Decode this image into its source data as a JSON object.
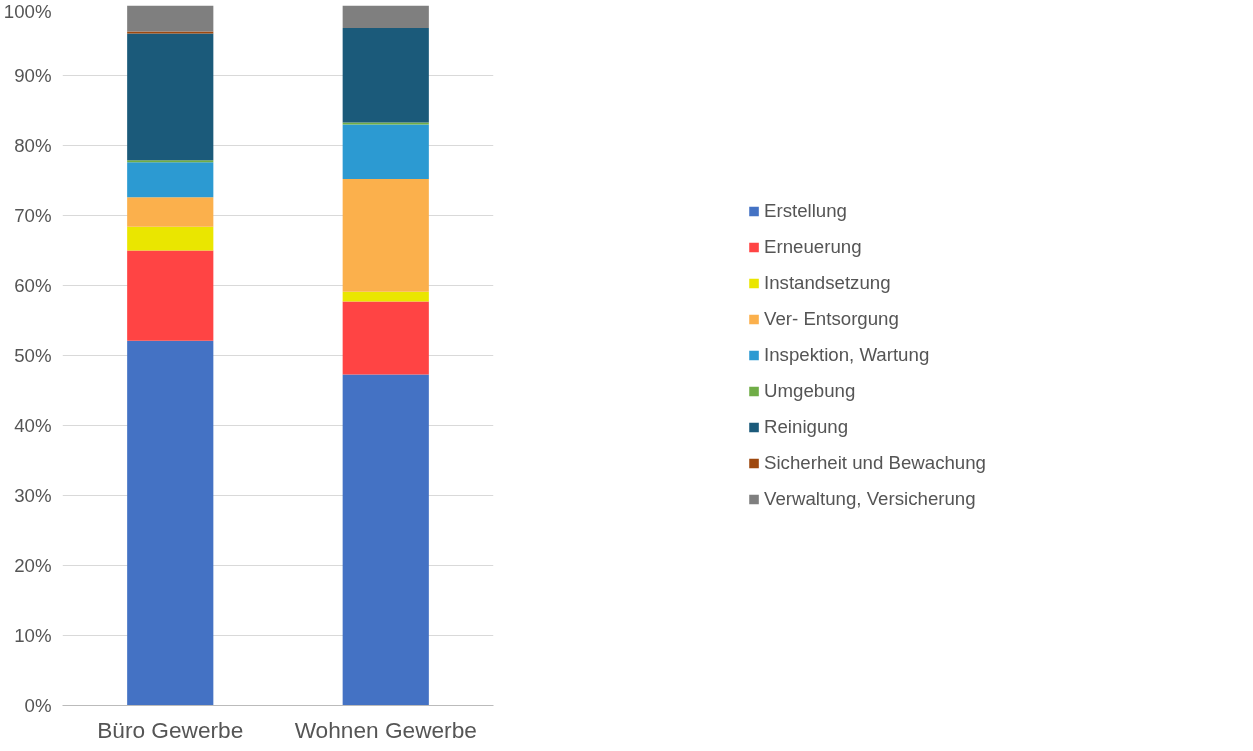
{
  "chart_data": {
    "type": "bar",
    "stacked": true,
    "categories": [
      "Büro Gewerbe",
      "Wohnen Gewerbe"
    ],
    "series": [
      {
        "name": "Erstellung",
        "color": "#4472c4",
        "values": [
          52.1,
          47.3
        ]
      },
      {
        "name": "Erneuerung",
        "color": "#ff4444",
        "values": [
          12.9,
          10.4
        ]
      },
      {
        "name": "Instandsetzung",
        "color": "#eae600",
        "values": [
          3.4,
          1.4
        ]
      },
      {
        "name": "Ver- Entsorgung",
        "color": "#fbb04c",
        "values": [
          4.2,
          16.1
        ]
      },
      {
        "name": "Inspektion, Wartung",
        "color": "#2c9ad2",
        "values": [
          5.0,
          7.8
        ]
      },
      {
        "name": "Umgebung",
        "color": "#70ad47",
        "values": [
          0.3,
          0.3
        ]
      },
      {
        "name": "Reinigung",
        "color": "#1b5a7a",
        "values": [
          18.1,
          13.5
        ]
      },
      {
        "name": "Sicherheit und Bewachung",
        "color": "#9e480e",
        "values": [
          0.3,
          0
        ]
      },
      {
        "name": "Verwaltung, Versicherung",
        "color": "#7f7f7f",
        "values": [
          3.7,
          3.2
        ]
      }
    ],
    "ylim": [
      0,
      100
    ],
    "yticks": [
      {
        "value": 0,
        "label": "0%"
      },
      {
        "value": 10,
        "label": "10%"
      },
      {
        "value": 20,
        "label": "20%"
      },
      {
        "value": 30,
        "label": "30%"
      },
      {
        "value": 40,
        "label": "40%"
      },
      {
        "value": 50,
        "label": "50%"
      },
      {
        "value": 60,
        "label": "60%"
      },
      {
        "value": 70,
        "label": "70%"
      },
      {
        "value": 80,
        "label": "80%"
      },
      {
        "value": 90,
        "label": "90%"
      },
      {
        "value": 100,
        "label": "100%"
      }
    ],
    "grid": "y",
    "legend": "right"
  }
}
